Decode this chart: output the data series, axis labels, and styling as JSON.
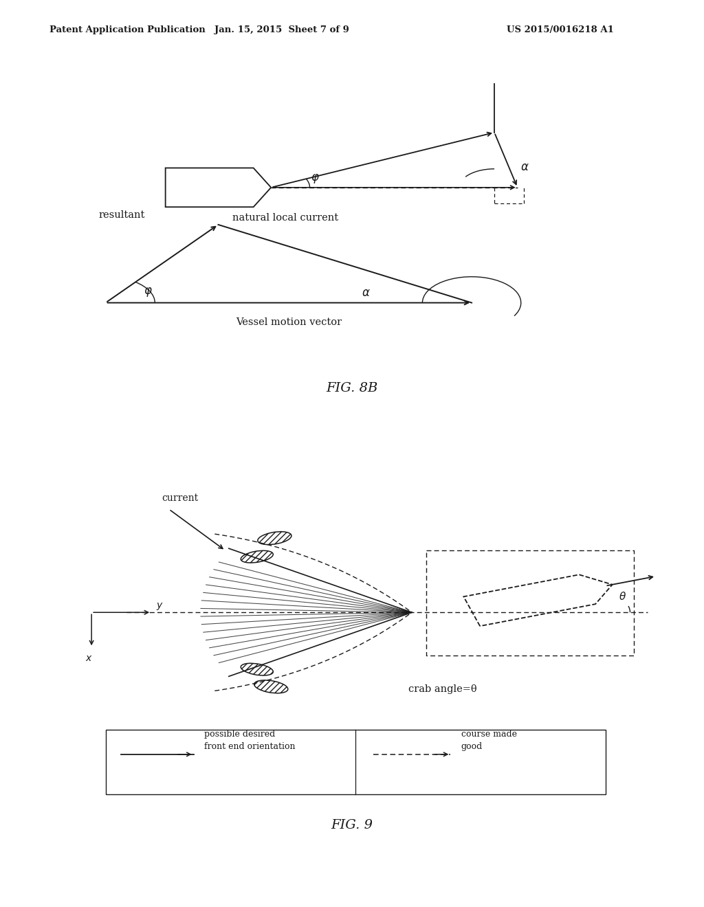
{
  "bg_color": "#ffffff",
  "line_color": "#1a1a1a",
  "header_left": "Patent Application Publication",
  "header_mid": "Jan. 15, 2015  Sheet 7 of 9",
  "header_right": "US 2015/0016218 A1",
  "fig8b_label": "FIG. 8B",
  "fig9_label": "FIG. 9",
  "phi_label": "φ",
  "alpha_label": "α",
  "theta_label": "θ",
  "resultant_label": "resultant",
  "natural_current_label": "natural local current",
  "vessel_motion_label": "Vessel motion vector",
  "current_label": "current",
  "crab_angle_label": "crab angle=θ",
  "y_label": "y",
  "x_label": "x",
  "legend_solid_label": "possible desired\nfront end orientation",
  "legend_dashed_label": "course made\ngood"
}
